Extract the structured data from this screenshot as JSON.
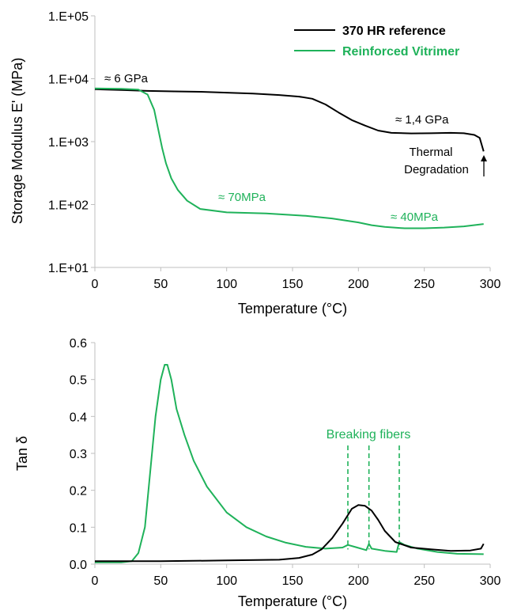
{
  "colors": {
    "reference": "#000000",
    "vitrimer": "#1fb25a",
    "axis": "#bfbfbf"
  },
  "chart_data": [
    {
      "type": "line",
      "title": "",
      "xlabel": "Temperature (°C)",
      "ylabel": "Storage Modulus E' (MPa)",
      "scale": "log",
      "xlim": [
        0,
        300
      ],
      "ylim": [
        10,
        100000
      ],
      "grid": false,
      "legend_position": "top-right",
      "x_ticks": [
        "0",
        "50",
        "100",
        "150",
        "200",
        "250",
        "300"
      ],
      "y_ticks": [
        "1.E+01",
        "1.E+02",
        "1.E+03",
        "1.E+04",
        "1.E+05"
      ],
      "series": [
        {
          "name": "370 HR reference",
          "color": "#000000",
          "points": [
            [
              0,
              6800
            ],
            [
              20,
              6600
            ],
            [
              40,
              6400
            ],
            [
              60,
              6300
            ],
            [
              80,
              6200
            ],
            [
              100,
              6000
            ],
            [
              120,
              5800
            ],
            [
              140,
              5500
            ],
            [
              155,
              5200
            ],
            [
              165,
              4800
            ],
            [
              175,
              3900
            ],
            [
              185,
              2900
            ],
            [
              195,
              2200
            ],
            [
              205,
              1800
            ],
            [
              215,
              1500
            ],
            [
              225,
              1380
            ],
            [
              240,
              1350
            ],
            [
              255,
              1360
            ],
            [
              270,
              1380
            ],
            [
              280,
              1360
            ],
            [
              288,
              1280
            ],
            [
              292,
              1150
            ],
            [
              295,
              700
            ]
          ]
        },
        {
          "name": "Reinforced Vitrimer",
          "color": "#1fb25a",
          "points": [
            [
              0,
              7000
            ],
            [
              20,
              6900
            ],
            [
              33,
              6700
            ],
            [
              40,
              5600
            ],
            [
              45,
              3200
            ],
            [
              48,
              1600
            ],
            [
              51,
              800
            ],
            [
              54,
              450
            ],
            [
              58,
              260
            ],
            [
              63,
              170
            ],
            [
              70,
              115
            ],
            [
              80,
              85
            ],
            [
              100,
              75
            ],
            [
              130,
              72
            ],
            [
              160,
              66
            ],
            [
              180,
              60
            ],
            [
              200,
              52
            ],
            [
              210,
              47
            ],
            [
              220,
              44
            ],
            [
              235,
              42
            ],
            [
              250,
              42
            ],
            [
              265,
              43
            ],
            [
              280,
              45
            ],
            [
              295,
              49
            ]
          ]
        }
      ],
      "annotations": [
        "≈ 6 GPa",
        "≈ 1,4 GPa",
        "≈ 70MPa",
        "≈ 40MPa",
        "Thermal",
        "Degradation"
      ]
    },
    {
      "type": "line",
      "title": "",
      "xlabel": "Temperature (°C)",
      "ylabel": "Tan δ",
      "xlim": [
        0,
        300
      ],
      "ylim": [
        0,
        0.6
      ],
      "grid": false,
      "x_ticks": [
        "0",
        "50",
        "100",
        "150",
        "200",
        "250",
        "300"
      ],
      "y_ticks": [
        "0.0",
        "0.1",
        "0.2",
        "0.3",
        "0.4",
        "0.5",
        "0.6"
      ],
      "series": [
        {
          "color": "#1fb25a",
          "points": [
            [
              0,
              0.005
            ],
            [
              20,
              0.005
            ],
            [
              28,
              0.008
            ],
            [
              33,
              0.03
            ],
            [
              38,
              0.1
            ],
            [
              42,
              0.25
            ],
            [
              46,
              0.4
            ],
            [
              50,
              0.5
            ],
            [
              53,
              0.54
            ],
            [
              55,
              0.54
            ],
            [
              58,
              0.5
            ],
            [
              62,
              0.42
            ],
            [
              68,
              0.35
            ],
            [
              75,
              0.28
            ],
            [
              85,
              0.21
            ],
            [
              100,
              0.14
            ],
            [
              115,
              0.1
            ],
            [
              130,
              0.075
            ],
            [
              145,
              0.058
            ],
            [
              160,
              0.047
            ],
            [
              175,
              0.042
            ],
            [
              188,
              0.045
            ],
            [
              192,
              0.052
            ],
            [
              198,
              0.046
            ],
            [
              206,
              0.038
            ],
            [
              208,
              0.055
            ],
            [
              210,
              0.042
            ],
            [
              220,
              0.036
            ],
            [
              229,
              0.033
            ],
            [
              231,
              0.06
            ],
            [
              235,
              0.052
            ],
            [
              245,
              0.042
            ],
            [
              260,
              0.033
            ],
            [
              275,
              0.028
            ],
            [
              295,
              0.027
            ]
          ]
        },
        {
          "color": "#000000",
          "points": [
            [
              0,
              0.008
            ],
            [
              50,
              0.008
            ],
            [
              100,
              0.01
            ],
            [
              140,
              0.012
            ],
            [
              155,
              0.017
            ],
            [
              165,
              0.026
            ],
            [
              172,
              0.04
            ],
            [
              180,
              0.07
            ],
            [
              188,
              0.11
            ],
            [
              195,
              0.15
            ],
            [
              200,
              0.16
            ],
            [
              205,
              0.158
            ],
            [
              210,
              0.145
            ],
            [
              215,
              0.12
            ],
            [
              220,
              0.09
            ],
            [
              228,
              0.06
            ],
            [
              240,
              0.045
            ],
            [
              255,
              0.04
            ],
            [
              270,
              0.036
            ],
            [
              285,
              0.037
            ],
            [
              293,
              0.042
            ],
            [
              295,
              0.055
            ]
          ]
        }
      ],
      "markers_x": [
        192,
        208,
        231
      ],
      "annotations": [
        "Breaking fibers"
      ]
    }
  ]
}
